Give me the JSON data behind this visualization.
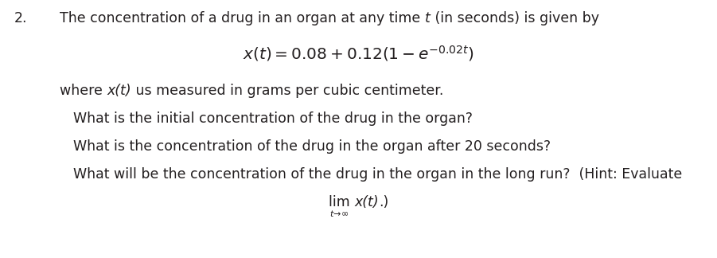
{
  "background_color": "#ffffff",
  "text_color": "#231f20",
  "number": "2.",
  "line1_pre": "The concentration of a drug in an organ at any time ",
  "line1_italic": "t",
  "line1_post": " (in seconds) is given by",
  "formula": "$x(t) = 0.08 + 0.12(1 - e^{-0.02t})$",
  "line2_pre": "where ",
  "line2_italic": "x(t)",
  "line2_post": " us measured in grams per cubic centimeter.",
  "q1": "What is the initial concentration of the drug in the organ?",
  "q2": "What is the concentration of the drug in the organ after 20 seconds?",
  "q3a": "What will be the concentration of the drug in the organ in the long run?  (Hint: Evaluate",
  "q3b_lim": "lim ",
  "q3b_xt": "x(t)",
  "q3b_end": ".)",
  "q3c": "$t\\!\\rightarrow\\!\\infty$",
  "font_size": 12.5,
  "formula_font_size": 14.5
}
